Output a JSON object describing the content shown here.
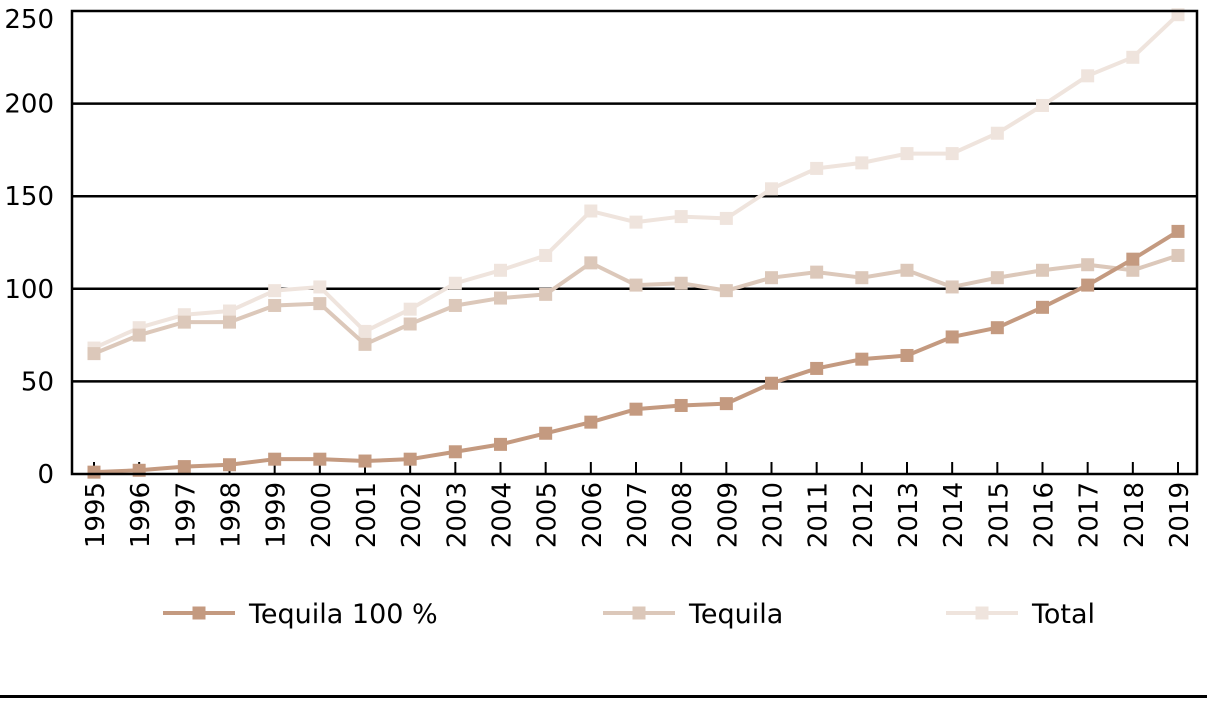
{
  "chart_data": {
    "type": "line",
    "title": "",
    "xlabel": "",
    "ylabel": "",
    "ylim": [
      0,
      250
    ],
    "yticks": [
      0,
      50,
      100,
      150,
      200,
      250
    ],
    "grid": "horizontal",
    "legend_position": "bottom",
    "x": [
      "1995",
      "1996",
      "1997",
      "1998",
      "1999",
      "2000",
      "2001",
      "2002",
      "2003",
      "2004",
      "2005",
      "2006",
      "2007",
      "2008",
      "2009",
      "2010",
      "2011",
      "2012",
      "2013",
      "2014",
      "2015",
      "2016",
      "2017",
      "2018",
      "2019"
    ],
    "series": [
      {
        "name": "Tequila 100 %",
        "color": "#c49a80",
        "values": [
          1,
          2,
          4,
          5,
          8,
          8,
          7,
          8,
          12,
          16,
          22,
          28,
          35,
          37,
          38,
          49,
          57,
          62,
          64,
          74,
          79,
          90,
          102,
          116,
          131
        ]
      },
      {
        "name": "Tequila",
        "color": "#dcc8ba",
        "values": [
          65,
          75,
          82,
          82,
          91,
          92,
          70,
          81,
          91,
          95,
          97,
          114,
          102,
          103,
          99,
          106,
          109,
          106,
          110,
          101,
          106,
          110,
          113,
          110,
          118
        ]
      },
      {
        "name": "Total",
        "color": "#efe4dd",
        "values": [
          68,
          79,
          86,
          88,
          99,
          101,
          77,
          89,
          103,
          110,
          118,
          142,
          136,
          139,
          138,
          154,
          165,
          168,
          173,
          173,
          184,
          199,
          215,
          225,
          248
        ]
      }
    ]
  }
}
